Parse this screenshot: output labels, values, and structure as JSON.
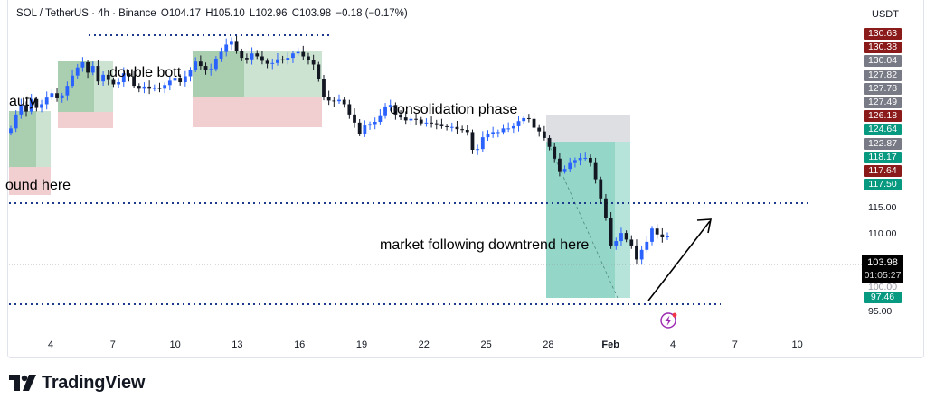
{
  "header": {
    "symbol": "SOL / TetherUS · 4h · Binance",
    "open": "O104.17",
    "high": "H105.10",
    "low": "L102.96",
    "close": "C103.98",
    "change": "−0.18 (−0.17%)"
  },
  "currency": "USDT",
  "price_tags": [
    {
      "label": "130.63",
      "color": "#8b1a1a"
    },
    {
      "label": "130.38",
      "color": "#8b1a1a"
    },
    {
      "label": "130.04",
      "color": "#787b86"
    },
    {
      "label": "127.82",
      "color": "#787b86"
    },
    {
      "label": "127.78",
      "color": "#787b86"
    },
    {
      "label": "127.49",
      "color": "#787b86"
    },
    {
      "label": "126.18",
      "color": "#8b1a1a"
    },
    {
      "label": "124.64",
      "color": "#089981"
    },
    {
      "label": "122.87",
      "color": "#787b86"
    },
    {
      "label": "118.17",
      "color": "#089981"
    },
    {
      "label": "117.64",
      "color": "#8b1a1a"
    },
    {
      "label": "117.50",
      "color": "#089981"
    }
  ],
  "axis_prices": [
    "115.00",
    "110.00",
    "100.00",
    "95.00"
  ],
  "last_price": {
    "value": "103.98",
    "countdown": "01:05:27"
  },
  "low_tag": {
    "label": "97.46",
    "color": "#089981"
  },
  "x_ticks": [
    "4",
    "7",
    "10",
    "13",
    "16",
    "19",
    "22",
    "25",
    "28",
    "Feb",
    "4",
    "7",
    "10"
  ],
  "annotations": {
    "beauty": "auty",
    "bound": "ound here",
    "double": "double bott",
    "consolidation": "consolidation phase",
    "downtrend": "market following downtrend here"
  },
  "brand": "TradingView",
  "colors": {
    "up": "#2962ff",
    "down": "#131722",
    "accent": "#089981"
  },
  "chart_data": {
    "type": "candlestick",
    "symbol": "SOL/USDT",
    "timeframe": "4h",
    "ylim": [
      93,
      133
    ],
    "x_axis": [
      "4",
      "7",
      "10",
      "13",
      "16",
      "19",
      "22",
      "25",
      "28",
      "Feb",
      "4",
      "7",
      "10"
    ],
    "closes": [
      118.6,
      120.5,
      121.8,
      120.9,
      122.6,
      121.4,
      121.9,
      122.8,
      123.4,
      122.7,
      123.1,
      124.4,
      125.8,
      126.9,
      127.6,
      126.2,
      127.1,
      125.0,
      125.9,
      125.2,
      124.6,
      124.9,
      126.1,
      125.7,
      124.4,
      124.0,
      124.3,
      124.0,
      124.1,
      124.0,
      124.5,
      125.1,
      125.5,
      124.9,
      125.7,
      126.6,
      127.7,
      127.1,
      126.5,
      126.7,
      128.1,
      129.0,
      130.0,
      130.5,
      129.1,
      128.2,
      128.0,
      128.8,
      128.4,
      127.8,
      127.4,
      127.5,
      128.0,
      127.9,
      128.2,
      128.8,
      129.0,
      128.4,
      127.9,
      127.3,
      125.3,
      122.9,
      122.4,
      122.3,
      122.5,
      121.9,
      120.5,
      119.4,
      117.9,
      119.0,
      119.2,
      119.5,
      120.4,
      121.6,
      121.8,
      120.5,
      120.1,
      119.7,
      119.9,
      119.8,
      119.3,
      119.4,
      119.3,
      119.2,
      118.9,
      118.8,
      118.8,
      118.5,
      118.4,
      118.1,
      115.7,
      115.8,
      117.4,
      117.9,
      118.1,
      118.1,
      118.6,
      118.6,
      118.9,
      119.6,
      120.0,
      119.9,
      118.7,
      118.2,
      117.3,
      116.1,
      114.5,
      112.8,
      113.1,
      113.9,
      114.3,
      114.6,
      114.6,
      113.9,
      111.7,
      109.1,
      106.4,
      102.7,
      103.3,
      104.4,
      103.5,
      102.7,
      100.8,
      102.1,
      103.2,
      105.0,
      104.2,
      103.8,
      104.0
    ]
  }
}
